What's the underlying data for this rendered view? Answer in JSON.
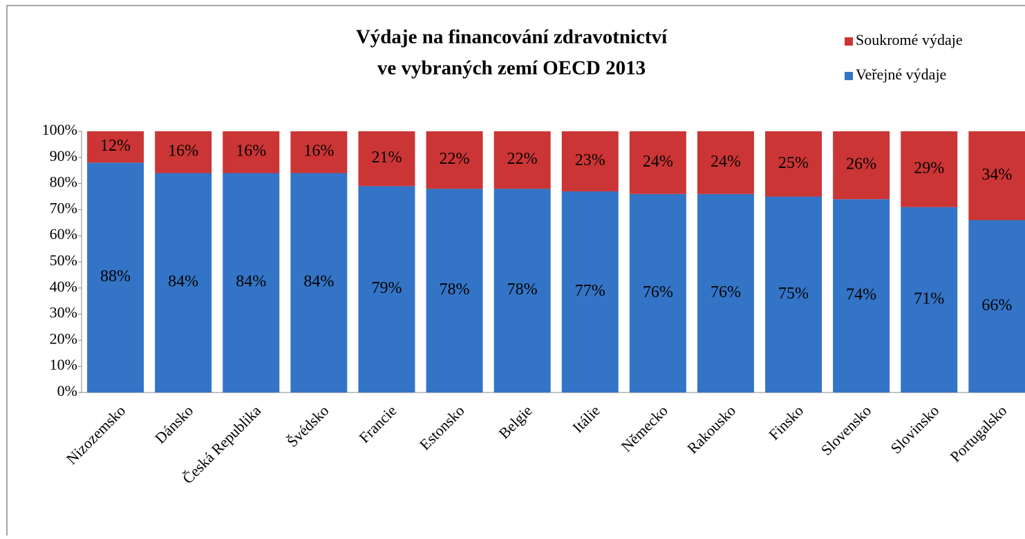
{
  "chart_data": {
    "type": "stacked-bar",
    "title": "Výdaje na financování zdravotnictví",
    "subtitle": "ve vybraných zemí OECD 2013",
    "categories": [
      "Nizozemsko",
      "Dánsko",
      "Česká Republika",
      "Švédsko",
      "Francie",
      "Estonsko",
      "Belgie",
      "Itálie",
      "Německo",
      "Rakousko",
      "Finsko",
      "Slovensko",
      "Slovinsko",
      "Portugalsko"
    ],
    "series": [
      {
        "name": "Veřejné výdaje",
        "color": "#3474c6",
        "values": [
          88,
          84,
          84,
          84,
          79,
          78,
          78,
          77,
          76,
          76,
          75,
          74,
          71,
          66
        ],
        "value_labels": [
          "88%",
          "84%",
          "84%",
          "84%",
          "79%",
          "78%",
          "78%",
          "77%",
          "76%",
          "76%",
          "75%",
          "74%",
          "71%",
          "66%"
        ]
      },
      {
        "name": "Soukromé výdaje",
        "color": "#cc3535",
        "values": [
          12,
          16,
          16,
          16,
          21,
          22,
          22,
          23,
          24,
          24,
          25,
          26,
          29,
          34
        ],
        "value_labels": [
          "12%",
          "16%",
          "16%",
          "16%",
          "21%",
          "22%",
          "22%",
          "23%",
          "24%",
          "24%",
          "25%",
          "26%",
          "29%",
          "34%"
        ]
      }
    ],
    "ylim": [
      0,
      100
    ],
    "yticks": [
      {
        "value": 0,
        "label": "0%"
      },
      {
        "value": 10,
        "label": "10%"
      },
      {
        "value": 20,
        "label": "20%"
      },
      {
        "value": 30,
        "label": "30%"
      },
      {
        "value": 40,
        "label": "40%"
      },
      {
        "value": 50,
        "label": "50%"
      },
      {
        "value": 60,
        "label": "60%"
      },
      {
        "value": 70,
        "label": "70%"
      },
      {
        "value": 80,
        "label": "80%"
      },
      {
        "value": 90,
        "label": "90%"
      },
      {
        "value": 100,
        "label": "100%"
      }
    ],
    "legend": "top-right"
  }
}
